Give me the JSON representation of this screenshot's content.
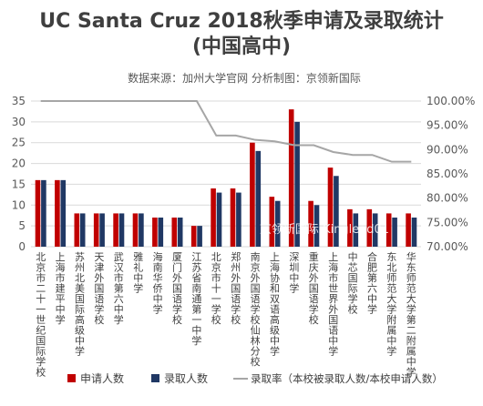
{
  "chart_data": {
    "type": "bar",
    "title_line1": "UC  Santa Cruz 2018秋季申请及录取统计",
    "title_line2": "(中国高中)",
    "subtitle": "数据来源：加州大学官网  分析制图：京领新国际",
    "watermark": "京领新国际 Kinglead01",
    "categories": [
      "北京市二十一世纪国际学校",
      "上海市建平中学",
      "苏州北美国际高级中学",
      "天津外国语学校",
      "武汉市第六中学",
      "雅礼中学",
      "海南华侨中学",
      "厦门外国语学校",
      "江苏省南通第一中学",
      "北京市十一学校",
      "郑州外国语学校",
      "南京外国语学校仙林分校",
      "上海协和双语高级中学",
      "深圳中学",
      "重庆外国语学校",
      "上海市世界外国语中学",
      "中芯国际学校",
      "合肥第六中学",
      "东北师范大学附属中学",
      "华东师范大学第二附属中学"
    ],
    "series": [
      {
        "name": "申请人数",
        "color": "#c00000",
        "values": [
          16,
          16,
          8,
          8,
          8,
          8,
          7,
          7,
          5,
          14,
          14,
          25,
          12,
          33,
          11,
          19,
          9,
          9,
          8,
          8
        ]
      },
      {
        "name": "录取人数",
        "color": "#203864",
        "values": [
          16,
          16,
          8,
          8,
          8,
          8,
          7,
          7,
          5,
          13,
          13,
          23,
          11,
          30,
          10,
          17,
          8,
          8,
          7,
          7
        ]
      },
      {
        "name": "录取率（本校被录取人数/本校申请人数）",
        "color": "#a6a6a6",
        "axis": "right",
        "values": [
          100,
          100,
          100,
          100,
          100,
          100,
          100,
          100,
          100,
          92.9,
          92.9,
          92.0,
          91.7,
          90.9,
          90.9,
          89.5,
          88.9,
          88.9,
          87.5,
          87.5
        ]
      }
    ],
    "y_left": {
      "ticks": [
        0,
        5,
        10,
        15,
        20,
        25,
        30,
        35
      ],
      "min": 0,
      "max": 35
    },
    "y_right": {
      "ticks": [
        "70.00%",
        "75.00%",
        "80.00%",
        "85.00%",
        "90.00%",
        "95.00%",
        "100.00%"
      ],
      "min": 70,
      "max": 100
    },
    "legend_position": "bottom"
  }
}
